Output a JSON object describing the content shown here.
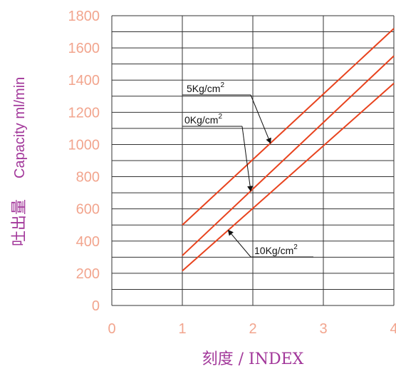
{
  "chart_data": {
    "type": "line",
    "xlabel": "刻度 / INDEX",
    "ylabel_jp": "吐出量",
    "ylabel_en": "Capacity ml/min",
    "xlim": [
      0,
      4
    ],
    "ylim": [
      0,
      1800
    ],
    "x_ticks": [
      "0",
      "1",
      "2",
      "3",
      "4"
    ],
    "y_ticks": [
      "0",
      "200",
      "400",
      "600",
      "800",
      "1000",
      "1200",
      "1400",
      "1600",
      "1800"
    ],
    "grid": true,
    "series": [
      {
        "name": "5Kg/cm2",
        "label_base": "5Kg/cm",
        "label_sup": "2",
        "x": [
          1,
          4
        ],
        "y": [
          500,
          1720
        ]
      },
      {
        "name": "0Kg/cm2",
        "label_base": "0Kg/cm",
        "label_sup": "2",
        "x": [
          1,
          4
        ],
        "y": [
          310,
          1550
        ]
      },
      {
        "name": "10Kg/cm2",
        "label_base": "10Kg/cm",
        "label_sup": "2",
        "x": [
          1,
          4
        ],
        "y": [
          215,
          1380
        ]
      }
    ]
  },
  "colors": {
    "line": "#e8431e",
    "grid": "#333333",
    "tick": "#f2a58e",
    "axis_label": "#a2379a",
    "annotation": "#111111"
  }
}
